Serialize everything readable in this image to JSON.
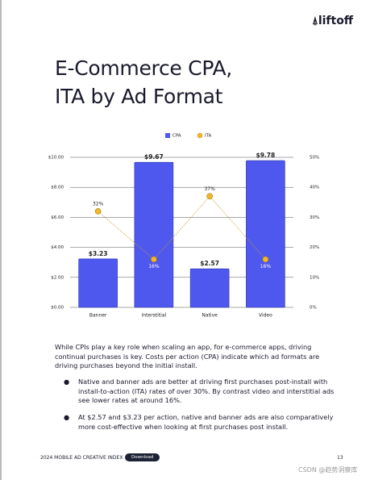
{
  "brand": "liftoff",
  "title": [
    "E-Commerce CPA,",
    "ITA by Ad Format"
  ],
  "chart_data": {
    "type": "bar",
    "categories": [
      "Banner",
      "Interstitial",
      "Native",
      "Video"
    ],
    "series": [
      {
        "name": "CPA",
        "color": "#4f58ee",
        "type": "bar",
        "values": [
          3.23,
          9.67,
          2.57,
          9.78
        ],
        "value_labels": [
          "$3.23",
          "$9.67",
          "$2.57",
          "$9.78"
        ]
      },
      {
        "name": "ITA",
        "color": "#f2b629",
        "type": "line",
        "axis": "y2",
        "values": [
          32,
          16,
          37,
          16
        ],
        "value_labels": [
          "32%",
          "16%",
          "37%",
          "16%"
        ]
      }
    ],
    "ylim": [
      0,
      10
    ],
    "yticks": [
      {
        "value": 0,
        "label": "$0.00"
      },
      {
        "value": 2,
        "label": "$2.00"
      },
      {
        "value": 4,
        "label": "$4.00"
      },
      {
        "value": 6,
        "label": "$6.00"
      },
      {
        "value": 8,
        "label": "$8.00"
      },
      {
        "value": 10,
        "label": "$10.00"
      }
    ],
    "y2lim": [
      0,
      50
    ],
    "y2ticks": [
      {
        "value": 0,
        "label": "0%"
      },
      {
        "value": 10,
        "label": "10%"
      },
      {
        "value": 20,
        "label": "20%"
      },
      {
        "value": 30,
        "label": "30%"
      },
      {
        "value": 40,
        "label": "40%"
      },
      {
        "value": 50,
        "label": "50%"
      }
    ],
    "grid": true,
    "legend": "top"
  },
  "intro": "While CPIs play a key role when scaling an app, for e-commerce apps, driving continual purchases is key. Costs per action (CPA) indicate which ad formats are driving purchases beyond the initial install.",
  "bullets": [
    "Native and banner ads are better at driving first purchases post-install with install-to-action (ITA) rates of over 30%. By contrast video and interstitial ads see lower rates at around 16%.",
    "At $2.57 and $3.23 per action, native and banner ads are also comparatively more cost-effective when looking at first purchases post install."
  ],
  "footer": {
    "report": "2024 MOBILE AD CREATIVE INDEX",
    "button": "Download",
    "page": "13"
  },
  "watermark": "CSDN @趋势洞察库"
}
